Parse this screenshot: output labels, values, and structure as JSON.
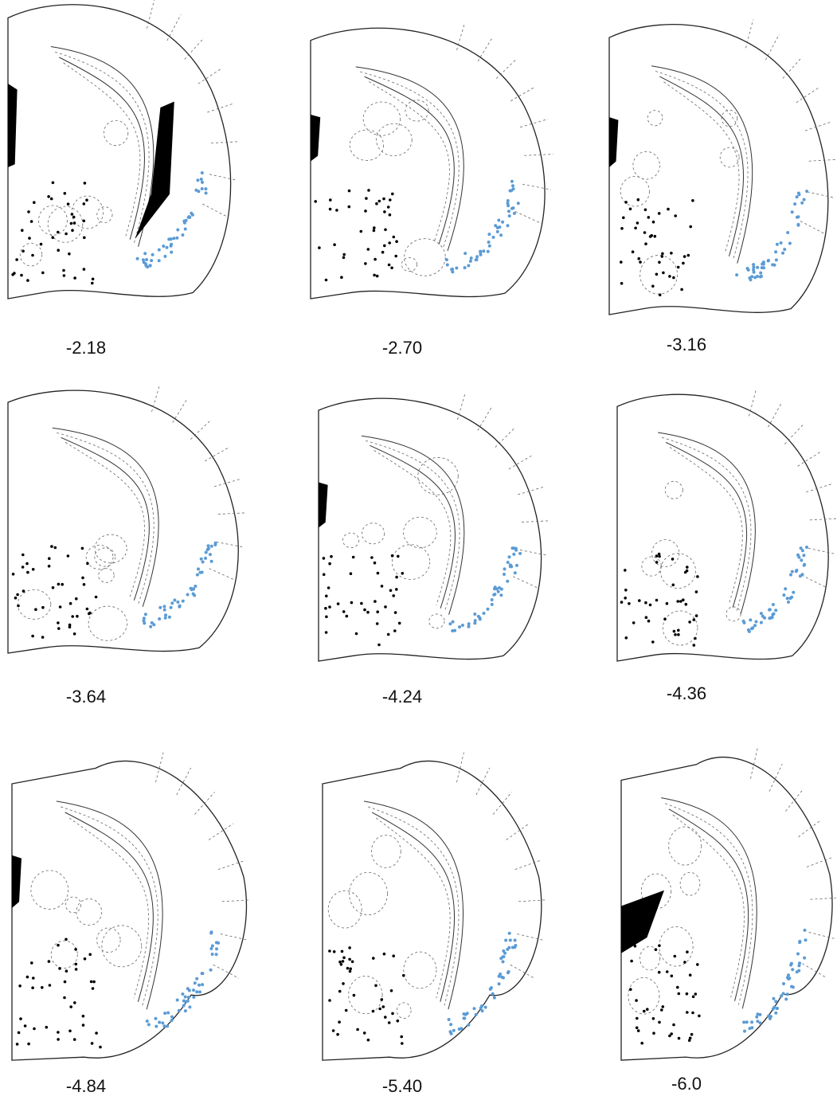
{
  "panels": [
    {
      "label": "-2.18"
    },
    {
      "label": "-2.70"
    },
    {
      "label": "-3.16"
    },
    {
      "label": "-3.64"
    },
    {
      "label": "-4.24"
    },
    {
      "label": "-4.36"
    },
    {
      "label": "-4.84"
    },
    {
      "label": "-5.40"
    },
    {
      "label": "-6.0"
    }
  ]
}
